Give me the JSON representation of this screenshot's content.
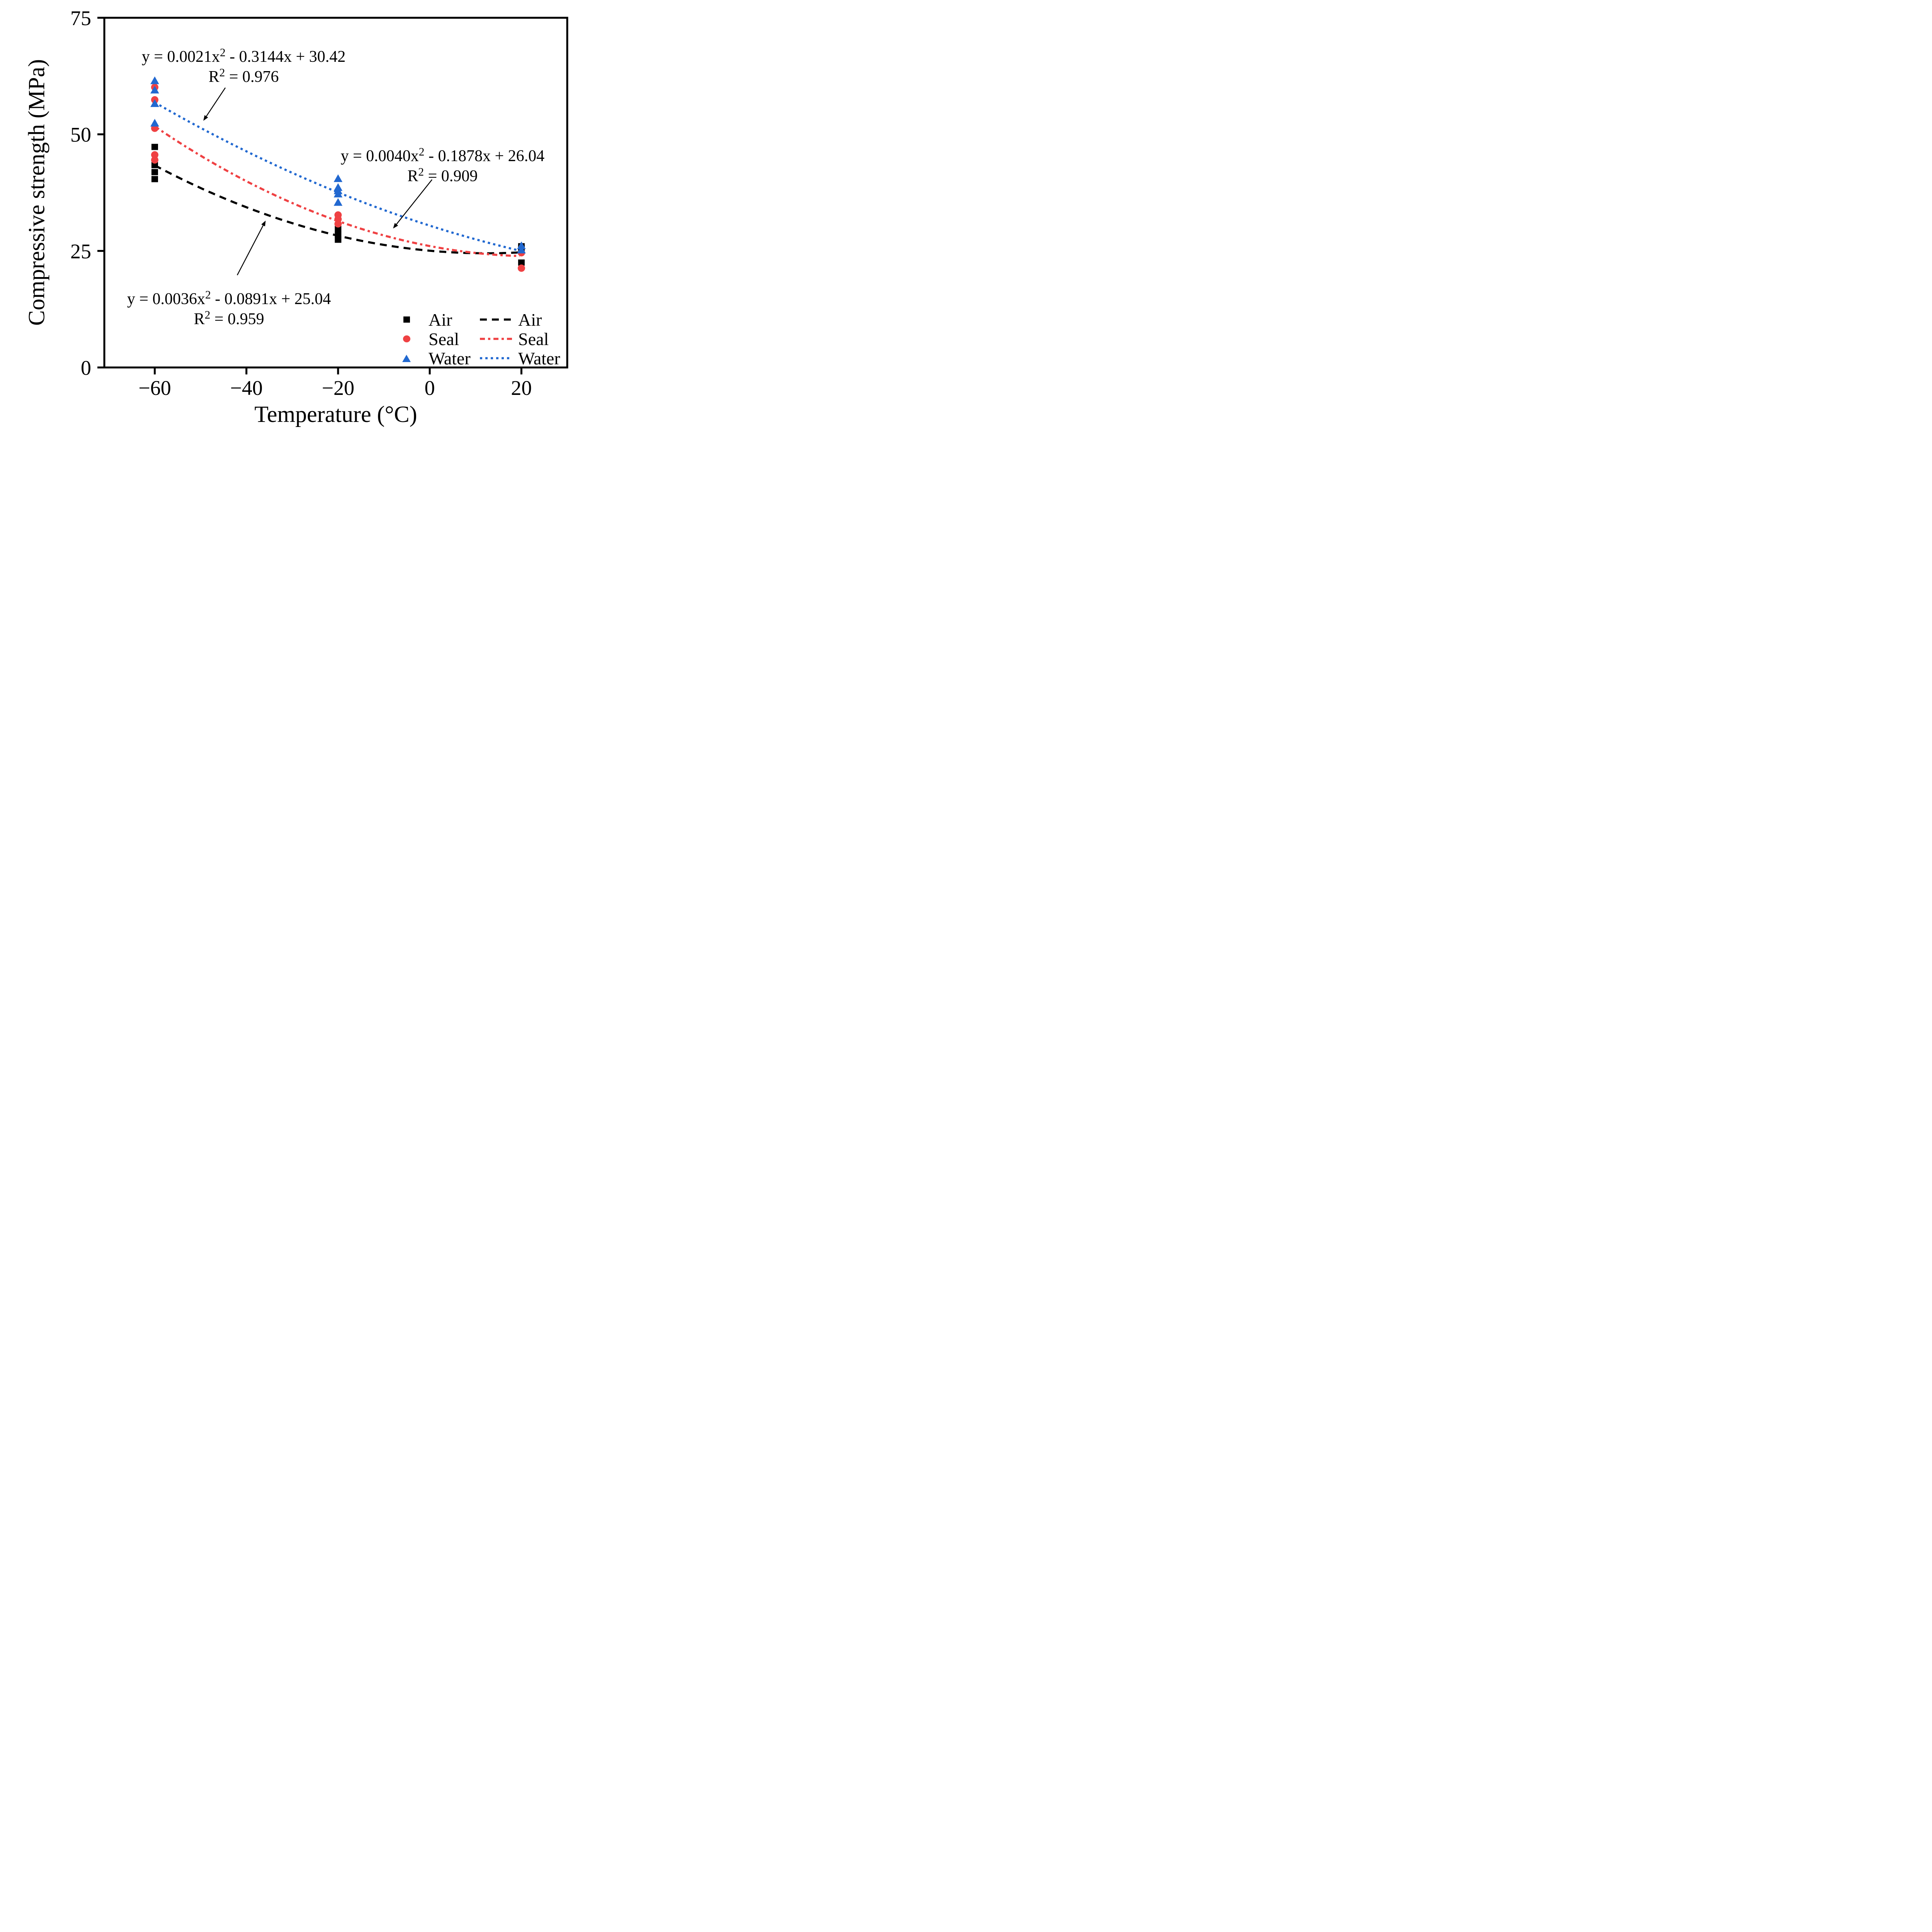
{
  "chart_data": {
    "type": "scatter",
    "title": "",
    "xlabel": "Temperature (°C)",
    "ylabel": "Compressive strength (MPa)",
    "xlim": [
      -71,
      30
    ],
    "ylim": [
      0,
      75
    ],
    "xticks": {
      "values": [
        -60,
        -40,
        -20,
        0,
        20
      ],
      "labels": [
        "−60",
        "−40",
        "−20",
        "0",
        "20"
      ]
    },
    "yticks": {
      "values": [
        0,
        25,
        50,
        75
      ],
      "labels": [
        "0",
        "25",
        "50",
        "75"
      ]
    },
    "grid": false,
    "legend_position": "lower-right-inside",
    "series": [
      {
        "name": "Air",
        "marker": "square",
        "color": "#000000",
        "points": [
          [
            -60,
            47.3
          ],
          [
            -60,
            43.4
          ],
          [
            -60,
            41.9
          ],
          [
            -60,
            40.4
          ],
          [
            -20,
            29.7
          ],
          [
            -20,
            28.5
          ],
          [
            -20,
            27.4
          ],
          [
            20,
            26.0
          ],
          [
            20,
            25.6
          ],
          [
            20,
            22.5
          ]
        ]
      },
      {
        "name": "Seal",
        "marker": "circle",
        "color": "#EF4143",
        "points": [
          [
            -60,
            60.1
          ],
          [
            -60,
            57.4
          ],
          [
            -60,
            51.3
          ],
          [
            -60,
            45.6
          ],
          [
            -60,
            44.5
          ],
          [
            -20,
            32.7
          ],
          [
            -20,
            31.8
          ],
          [
            -20,
            30.8
          ],
          [
            20,
            24.6
          ],
          [
            20,
            21.3
          ]
        ]
      },
      {
        "name": "Water",
        "marker": "triangle",
        "color": "#2168D0",
        "points": [
          [
            -60,
            61.6
          ],
          [
            -60,
            59.6
          ],
          [
            -60,
            56.7
          ],
          [
            -60,
            52.5
          ],
          [
            -20,
            40.6
          ],
          [
            -20,
            38.7
          ],
          [
            -20,
            38.0
          ],
          [
            -20,
            37.3
          ],
          [
            -20,
            35.5
          ],
          [
            20,
            26.2
          ],
          [
            20,
            25.3
          ]
        ]
      }
    ],
    "fit_curves": [
      {
        "name": "Air",
        "color": "#000000",
        "style": "dashed",
        "dash": "18 13",
        "coeffs": [
          0.0036,
          -0.0891,
          25.04
        ],
        "x_range": [
          -60,
          19.7
        ],
        "equation": {
          "pre": "y = 0.0036x",
          "sup": "2",
          "post": " - 0.0891x + 25.04"
        },
        "r2": {
          "pre": "R",
          "sup": "2",
          "post": " = 0.959"
        }
      },
      {
        "name": "Seal",
        "color": "#EF4143",
        "style": "dash-dot-dot",
        "dash": "13 8 6 8",
        "coeffs": [
          0.004,
          -0.1878,
          26.04
        ],
        "x_range": [
          -60,
          19.7
        ],
        "equation": {
          "pre": "y = 0.0040x",
          "sup": "2",
          "post": " - 0.1878x + 26.04"
        },
        "r2": {
          "pre": "R",
          "sup": "2",
          "post": " = 0.909"
        }
      },
      {
        "name": "Water",
        "color": "#2168D0",
        "style": "dotted",
        "dash": "6 8",
        "coeffs": [
          0.0021,
          -0.3144,
          30.42
        ],
        "x_range": [
          -60,
          19.7
        ],
        "equation": {
          "pre": "y = 0.0021x",
          "sup": "2",
          "post": " - 0.3144x + 30.42"
        },
        "r2": {
          "pre": "R",
          "sup": "2",
          "post": " = 0.976"
        }
      }
    ],
    "equation_anchors": {
      "water": {
        "x": -40.6,
        "y": 66.6
      },
      "seal": {
        "x": 2.8,
        "y": 45.3
      },
      "air": {
        "x": -43.8,
        "y": 14.7
      }
    },
    "arrows": [
      {
        "from": [
          -44.6,
          60.0
        ],
        "to": [
          -49.4,
          52.9
        ]
      },
      {
        "from": [
          0.5,
          40.3
        ],
        "to": [
          -8.0,
          29.8
        ]
      },
      {
        "from": [
          -42.0,
          19.8
        ],
        "to": [
          -35.8,
          31.5
        ]
      }
    ]
  },
  "legend": {
    "marker_entries": [
      {
        "label": "Air"
      },
      {
        "label": "Seal"
      },
      {
        "label": "Water"
      }
    ],
    "line_entries": [
      {
        "label": "Air"
      },
      {
        "label": "Seal"
      },
      {
        "label": "Water"
      }
    ]
  }
}
